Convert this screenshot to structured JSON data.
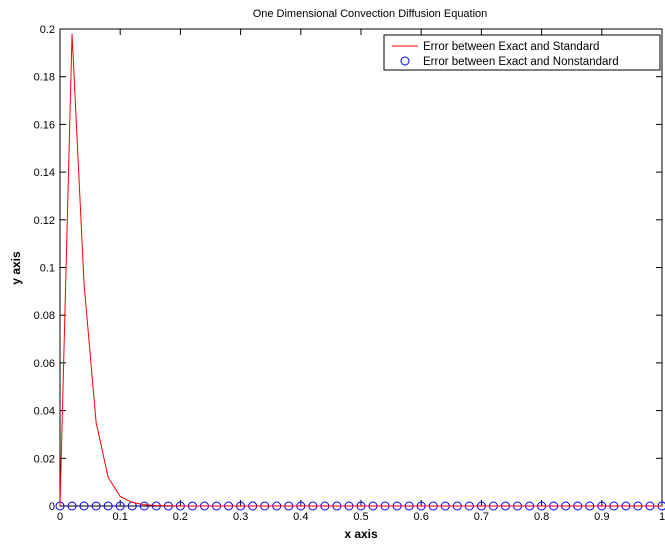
{
  "chart_data": {
    "type": "line",
    "title": "One Dimensional Convection Diffusion Equation",
    "xlabel": "x axis",
    "ylabel": "y axis",
    "xlim": [
      0,
      1
    ],
    "ylim": [
      0,
      0.2
    ],
    "xticks": [
      0,
      0.1,
      0.2,
      0.3,
      0.4,
      0.5,
      0.6,
      0.7,
      0.8,
      0.9,
      1
    ],
    "xtick_labels": [
      "0",
      "0.1",
      "0.2",
      "0.3",
      "0.4",
      "0.5",
      "0.6",
      "0.7",
      "0.8",
      "0.9",
      "1"
    ],
    "yticks": [
      0,
      0.02,
      0.04,
      0.06,
      0.08,
      0.1,
      0.12,
      0.14,
      0.16,
      0.18,
      0.2
    ],
    "ytick_labels": [
      "0",
      "0.02",
      "0.04",
      "0.06",
      "0.08",
      "0.1",
      "0.12",
      "0.14",
      "0.16",
      "0.18",
      "0.2"
    ],
    "grid": false,
    "legend_position": "top-right",
    "series": [
      {
        "name": "Error between Exact and Standard",
        "style": "line",
        "color": "#ff0000",
        "x": [
          0,
          0.02,
          0.04,
          0.06,
          0.08,
          0.1,
          0.12,
          0.14,
          0.16,
          0.18,
          0.2,
          0.3,
          0.4,
          0.5,
          0.6,
          0.7,
          0.8,
          0.9,
          1
        ],
        "y": [
          0,
          0.198,
          0.093,
          0.035,
          0.012,
          0.004,
          0.0015,
          0.0005,
          0.0002,
          0.0001,
          0,
          0,
          0,
          0,
          0,
          0,
          0,
          0,
          0
        ]
      },
      {
        "name": "Error between Exact and Nonstandard",
        "style": "markers",
        "marker": "circle",
        "color": "#0000ff",
        "x_start": 0,
        "x_end": 1,
        "x_step": 0.02,
        "y_value": 0
      }
    ]
  }
}
